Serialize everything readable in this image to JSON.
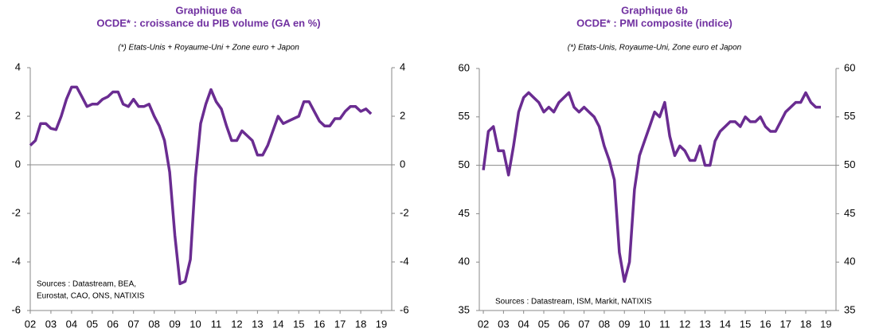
{
  "chart_data": [
    {
      "type": "line",
      "title": "Graphique 6a",
      "subtitle": "OCDE* : croissance du PIB volume (GA en %)",
      "note": "(*) Etats-Unis + Royaume-Uni  + Zone euro + Japon",
      "sources": [
        "Sources : Datastream, BEA,",
        "Eurostat, CAO, ONS, NATIXIS"
      ],
      "x": [
        2002,
        2002.25,
        2002.5,
        2002.75,
        2003,
        2003.25,
        2003.5,
        2003.75,
        2004,
        2004.25,
        2004.5,
        2004.75,
        2005,
        2005.25,
        2005.5,
        2005.75,
        2006,
        2006.25,
        2006.5,
        2006.75,
        2007,
        2007.25,
        2007.5,
        2007.75,
        2008,
        2008.25,
        2008.5,
        2008.75,
        2009,
        2009.25,
        2009.5,
        2009.75,
        2010,
        2010.25,
        2010.5,
        2010.75,
        2011,
        2011.25,
        2011.5,
        2011.75,
        2012,
        2012.25,
        2012.5,
        2012.75,
        2013,
        2013.25,
        2013.5,
        2013.75,
        2014,
        2014.25,
        2014.5,
        2014.75,
        2015,
        2015.25,
        2015.5,
        2015.75,
        2016,
        2016.25,
        2016.5,
        2016.75,
        2017,
        2017.25,
        2017.5,
        2017.75,
        2018,
        2018.25,
        2018.5
      ],
      "series": [
        {
          "name": "PIB",
          "color": "#6a2c91",
          "values": [
            0.8,
            1.0,
            1.7,
            1.7,
            1.5,
            1.45,
            2.0,
            2.7,
            3.2,
            3.2,
            2.8,
            2.4,
            2.5,
            2.5,
            2.7,
            2.8,
            3.0,
            3.0,
            2.5,
            2.4,
            2.7,
            2.4,
            2.4,
            2.5,
            2.0,
            1.6,
            1.0,
            -0.3,
            -2.9,
            -4.9,
            -4.8,
            -3.9,
            -0.5,
            1.7,
            2.5,
            3.1,
            2.6,
            2.3,
            1.6,
            1.0,
            1.0,
            1.4,
            1.2,
            1.0,
            0.4,
            0.4,
            0.8,
            1.4,
            2.0,
            1.7,
            1.8,
            1.9,
            2.0,
            2.6,
            2.6,
            2.2,
            1.8,
            1.6,
            1.6,
            1.9,
            1.9,
            2.2,
            2.4,
            2.4,
            2.2,
            2.3,
            2.1
          ]
        }
      ],
      "xlim": [
        2002,
        2019.5
      ],
      "xticks": [
        {
          "value": 2002,
          "label": "02"
        },
        {
          "value": 2003,
          "label": "03"
        },
        {
          "value": 2004,
          "label": "04"
        },
        {
          "value": 2005,
          "label": "05"
        },
        {
          "value": 2006,
          "label": "06"
        },
        {
          "value": 2007,
          "label": "07"
        },
        {
          "value": 2008,
          "label": "08"
        },
        {
          "value": 2009,
          "label": "09"
        },
        {
          "value": 2010,
          "label": "10"
        },
        {
          "value": 2011,
          "label": "11"
        },
        {
          "value": 2012,
          "label": "12"
        },
        {
          "value": 2013,
          "label": "13"
        },
        {
          "value": 2014,
          "label": "14"
        },
        {
          "value": 2015,
          "label": "15"
        },
        {
          "value": 2016,
          "label": "16"
        },
        {
          "value": 2017,
          "label": "17"
        },
        {
          "value": 2018,
          "label": "18"
        },
        {
          "value": 2019,
          "label": "19"
        }
      ],
      "ylim": [
        -6,
        4
      ],
      "yticks": [
        -6,
        -4,
        -2,
        0,
        2,
        4
      ],
      "y2lim": [
        -6,
        4
      ],
      "y2ticks": [
        -6,
        -4,
        -2,
        0,
        2,
        4
      ],
      "hline": 0
    },
    {
      "type": "line",
      "title": "Graphique 6b",
      "subtitle": "OCDE* : PMI composite (indice)",
      "note": "(*) Etats-Unis, Royaume-Uni,  Zone euro et Japon",
      "sources": [
        "Sources : Datastream, ISM, Markit, NATIXIS"
      ],
      "x": [
        2002,
        2002.25,
        2002.5,
        2002.75,
        2003,
        2003.25,
        2003.5,
        2003.75,
        2004,
        2004.25,
        2004.5,
        2004.75,
        2005,
        2005.25,
        2005.5,
        2005.75,
        2006,
        2006.25,
        2006.5,
        2006.75,
        2007,
        2007.25,
        2007.5,
        2007.75,
        2008,
        2008.25,
        2008.5,
        2008.75,
        2009,
        2009.25,
        2009.5,
        2009.75,
        2010,
        2010.25,
        2010.5,
        2010.75,
        2011,
        2011.25,
        2011.5,
        2011.75,
        2012,
        2012.25,
        2012.5,
        2012.75,
        2013,
        2013.25,
        2013.5,
        2013.75,
        2014,
        2014.25,
        2014.5,
        2014.75,
        2015,
        2015.25,
        2015.5,
        2015.75,
        2016,
        2016.25,
        2016.5,
        2016.75,
        2017,
        2017.25,
        2017.5,
        2017.75,
        2018,
        2018.25,
        2018.5,
        2018.75
      ],
      "series": [
        {
          "name": "PMI",
          "color": "#6a2c91",
          "values": [
            49.5,
            53.5,
            54,
            51.5,
            51.5,
            49,
            52,
            55.5,
            57,
            57.5,
            57,
            56.5,
            55.5,
            56,
            55.5,
            56.5,
            57,
            57.5,
            56,
            55.5,
            56,
            55.5,
            55,
            54,
            52,
            50.5,
            48.5,
            41,
            38,
            40,
            47.5,
            51,
            52.5,
            54,
            55.5,
            55,
            56.5,
            53,
            51,
            52,
            51.5,
            50.5,
            50.5,
            52,
            50,
            50,
            52.5,
            53.5,
            54,
            54.5,
            54.5,
            54,
            55,
            54.5,
            54.5,
            55,
            54,
            53.5,
            53.5,
            54.5,
            55.5,
            56,
            56.5,
            56.5,
            57.5,
            56.5,
            56,
            56
          ]
        }
      ],
      "xlim": [
        2001.8,
        2019.5
      ],
      "xticks": [
        {
          "value": 2002,
          "label": "02"
        },
        {
          "value": 2003,
          "label": "03"
        },
        {
          "value": 2004,
          "label": "04"
        },
        {
          "value": 2005,
          "label": "05"
        },
        {
          "value": 2006,
          "label": "06"
        },
        {
          "value": 2007,
          "label": "07"
        },
        {
          "value": 2008,
          "label": "08"
        },
        {
          "value": 2009,
          "label": "09"
        },
        {
          "value": 2010,
          "label": "10"
        },
        {
          "value": 2011,
          "label": "11"
        },
        {
          "value": 2012,
          "label": "12"
        },
        {
          "value": 2013,
          "label": "13"
        },
        {
          "value": 2014,
          "label": "14"
        },
        {
          "value": 2015,
          "label": "15"
        },
        {
          "value": 2016,
          "label": "16"
        },
        {
          "value": 2017,
          "label": "17"
        },
        {
          "value": 2018,
          "label": "18"
        },
        {
          "value": 2019,
          "label": "19"
        }
      ],
      "ylim": [
        35,
        60
      ],
      "yticks": [
        35,
        40,
        45,
        50,
        55,
        60
      ],
      "y2lim": [
        35,
        60
      ],
      "y2ticks": [
        35,
        40,
        45,
        50,
        55,
        60
      ],
      "hline": 50
    }
  ]
}
